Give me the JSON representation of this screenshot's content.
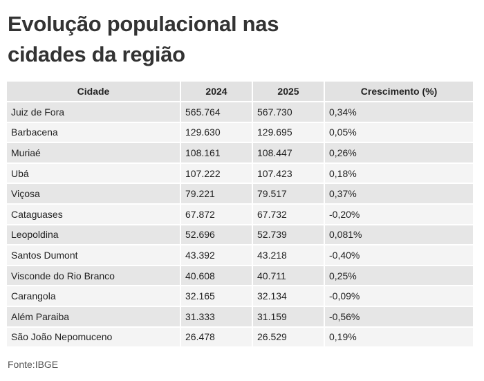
{
  "title_line1": "Evolução populacional nas",
  "title_line2": "cidades da região",
  "source": "Fonte:IBGE",
  "chart_data": {
    "type": "table",
    "columns": [
      "Cidade",
      "2024",
      "2025",
      "Crescimento (%)"
    ],
    "rows": [
      [
        "Juiz de Fora",
        "565.764",
        "567.730",
        "0,34%"
      ],
      [
        "Barbacena",
        "129.630",
        "129.695",
        "0,05%"
      ],
      [
        "Muriaé",
        "108.161",
        "108.447",
        "0,26%"
      ],
      [
        "Ubá",
        "107.222",
        "107.423",
        "0,18%"
      ],
      [
        "Viçosa",
        "79.221",
        "79.517",
        "0,37%"
      ],
      [
        "Cataguases",
        "67.872",
        "67.732",
        "-0,20%"
      ],
      [
        "Leopoldina",
        "52.696",
        "52.739",
        "0,081%"
      ],
      [
        "Santos Dumont",
        "43.392",
        "43.218",
        "-0,40%"
      ],
      [
        "Visconde do Rio Branco",
        "40.608",
        "40.711",
        "0,25%"
      ],
      [
        "Carangola",
        "32.165",
        "32.134",
        "-0,09%"
      ],
      [
        "Além Paraiba",
        "31.333",
        "31.159",
        "-0,56%"
      ],
      [
        "São João Nepomuceno",
        "26.478",
        "26.529",
        "0,19%"
      ]
    ]
  }
}
